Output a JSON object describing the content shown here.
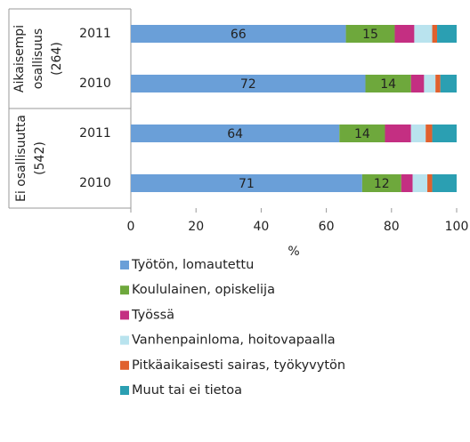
{
  "chart_data": {
    "type": "stacked_bar_horizontal",
    "groups": [
      {
        "lines": [
          "Aikaisempi",
          "osallisuus",
          "(264)"
        ],
        "categories": [
          "2011",
          "2010"
        ]
      },
      {
        "lines": [
          "Ei osallisuutta",
          "(542)"
        ],
        "categories": [
          "2011",
          "2010"
        ]
      }
    ],
    "series": [
      {
        "name": "Työtön, lomautettu",
        "color": "#6a9fd8",
        "labels": true,
        "values": [
          66,
          72,
          64,
          71
        ]
      },
      {
        "name": "Koululainen, opiskelija",
        "color": "#6ea83c",
        "labels": true,
        "values": [
          15,
          14,
          14,
          12
        ]
      },
      {
        "name": "Työssä",
        "color": "#c42f82",
        "values": [
          6,
          4,
          8,
          3.5
        ]
      },
      {
        "name": "Vanhenpainloma, hoitovapaalla",
        "color": "#b9e3ee",
        "values": [
          5.5,
          3.5,
          4.5,
          4.5
        ]
      },
      {
        "name": "Pitkäaikaisesti sairas, työkyvytön",
        "color": "#e0612e",
        "values": [
          1.5,
          1.5,
          2,
          1.5
        ]
      },
      {
        "name": "Muut tai ei tietoa",
        "color": "#2b9fb2",
        "values": [
          6,
          5,
          7.5,
          7.5
        ]
      }
    ],
    "xlim": [
      0,
      100
    ],
    "xticks": [
      0,
      20,
      40,
      60,
      80,
      100
    ],
    "xlabel": "%"
  }
}
